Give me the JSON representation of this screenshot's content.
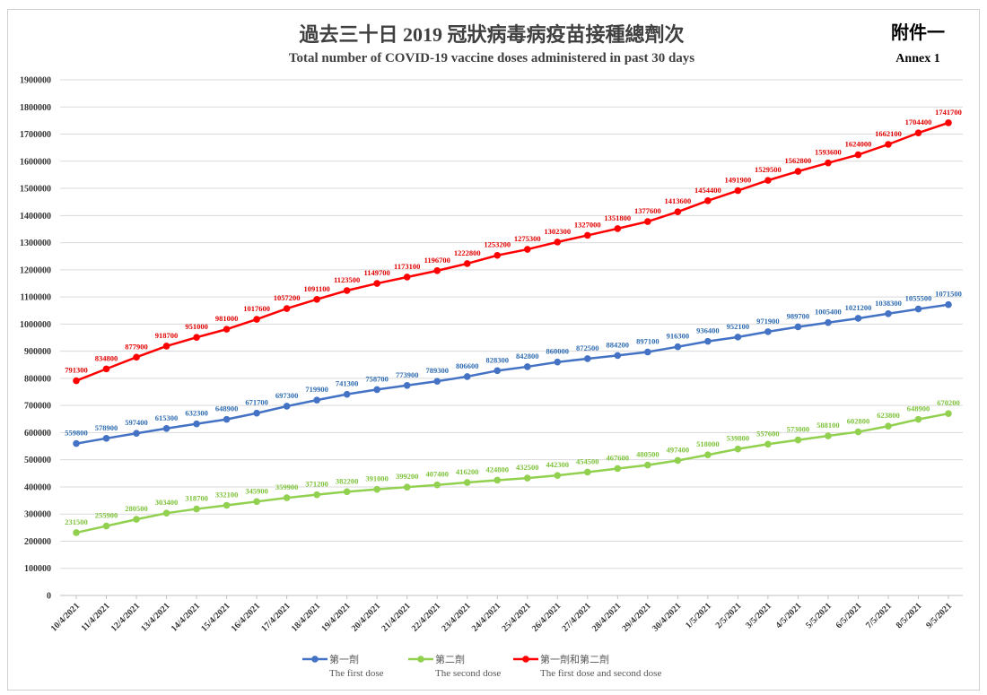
{
  "chart_data": {
    "type": "line",
    "title": "過去三十日 2019 冠狀病毒病疫苗接種總劑次",
    "subtitle": "Total number of COVID-19 vaccine doses administered in past 30 days",
    "annex": "附件一",
    "annex_en": "Annex 1",
    "xlabel": "",
    "ylabel": "",
    "ylim": [
      0,
      1900000
    ],
    "yticks": [
      0,
      100000,
      200000,
      300000,
      400000,
      500000,
      600000,
      700000,
      800000,
      900000,
      1000000,
      1100000,
      1200000,
      1300000,
      1400000,
      1500000,
      1600000,
      1700000,
      1800000,
      1900000
    ],
    "grid": true,
    "legend_position": "bottom",
    "x": [
      "10/4/2021",
      "11/4/2021",
      "12/4/2021",
      "13/4/2021",
      "14/4/2021",
      "15/4/2021",
      "16/4/2021",
      "17/4/2021",
      "18/4/2021",
      "19/4/2021",
      "20/4/2021",
      "21/4/2021",
      "22/4/2021",
      "23/4/2021",
      "24/4/2021",
      "25/4/2021",
      "26/4/2021",
      "27/4/2021",
      "28/4/2021",
      "29/4/2021",
      "30/4/2021",
      "1/5/2021",
      "2/5/2021",
      "3/5/2021",
      "4/5/2021",
      "5/5/2021",
      "6/5/2021",
      "7/5/2021",
      "8/5/2021",
      "9/5/2021"
    ],
    "series": [
      {
        "name": "第一劑",
        "name_en": "The first dose",
        "color": "#4472C4",
        "label_color": "#2E6BB0",
        "values": [
          559800,
          578900,
          597400,
          615300,
          632300,
          648900,
          671700,
          697300,
          719900,
          741300,
          758700,
          773900,
          789300,
          806600,
          828300,
          842800,
          860000,
          872500,
          884200,
          897100,
          916300,
          936400,
          952100,
          971900,
          989700,
          1005400,
          1021200,
          1038300,
          1055500,
          1071500
        ]
      },
      {
        "name": "第二劑",
        "name_en": "The second dose",
        "color": "#92D050",
        "label_color": "#7DC23A",
        "values": [
          231500,
          255900,
          280500,
          303400,
          318700,
          332100,
          345900,
          359900,
          371200,
          382200,
          391000,
          399200,
          407400,
          416200,
          424800,
          432500,
          442300,
          454500,
          467600,
          480500,
          497400,
          518000,
          539800,
          557600,
          573000,
          588100,
          602800,
          623800,
          648900,
          670200
        ]
      },
      {
        "name": "第一劑和第二劑",
        "name_en": "The first dose and second dose",
        "color": "#FF0000",
        "label_color": "#E00000",
        "values": [
          791300,
          834800,
          877900,
          918700,
          951000,
          981000,
          1017600,
          1057200,
          1091100,
          1123500,
          1149700,
          1173100,
          1196700,
          1222800,
          1253200,
          1275300,
          1302300,
          1327000,
          1351800,
          1377600,
          1413600,
          1454400,
          1491900,
          1529500,
          1562800,
          1593600,
          1624000,
          1662100,
          1704400,
          1741700
        ]
      }
    ]
  }
}
